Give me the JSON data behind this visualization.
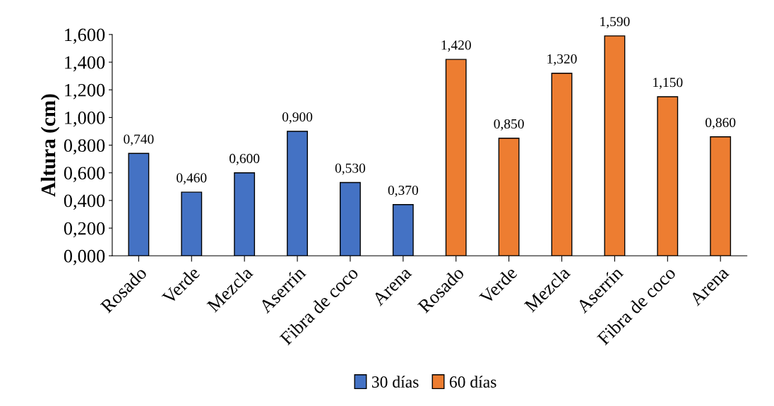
{
  "chart_data": {
    "type": "bar",
    "ylabel": "Altura (cm)",
    "categories": [
      "Rosado",
      "Verde",
      "Mezcla",
      "Aserrín",
      "Fibra de coco",
      "Arena",
      "Rosado",
      "Verde",
      "Mezcla",
      "Aserrín",
      "Fibra de coco",
      "Arena"
    ],
    "series": [
      {
        "name": "30 días",
        "color": "#4472c4",
        "values": [
          0.74,
          0.46,
          0.6,
          0.9,
          0.53,
          0.37,
          null,
          null,
          null,
          null,
          null,
          null
        ],
        "value_labels": [
          "0,740",
          "0,460",
          "0,600",
          "0,900",
          "0,530",
          "0,370",
          null,
          null,
          null,
          null,
          null,
          null
        ]
      },
      {
        "name": "60 días",
        "color": "#ed7d31",
        "values": [
          null,
          null,
          null,
          null,
          null,
          null,
          1.42,
          0.85,
          1.32,
          1.59,
          1.15,
          0.86
        ],
        "value_labels": [
          null,
          null,
          null,
          null,
          null,
          null,
          "1,420",
          "0,850",
          "1,320",
          "1,590",
          "1,150",
          "0,860"
        ]
      }
    ],
    "ylim": [
      0,
      1.6
    ],
    "yticks": [
      {
        "value": 0,
        "label": "0,000"
      },
      {
        "value": 0.2,
        "label": "0,200"
      },
      {
        "value": 0.4,
        "label": "0,400"
      },
      {
        "value": 0.6,
        "label": "0,600"
      },
      {
        "value": 0.8,
        "label": "0,800"
      },
      {
        "value": 1.0,
        "label": "1,000"
      },
      {
        "value": 1.2,
        "label": "1,200"
      },
      {
        "value": 1.4,
        "label": "1,400"
      },
      {
        "value": 1.6,
        "label": "1,600"
      }
    ],
    "grid": false,
    "legend": "bottom"
  }
}
